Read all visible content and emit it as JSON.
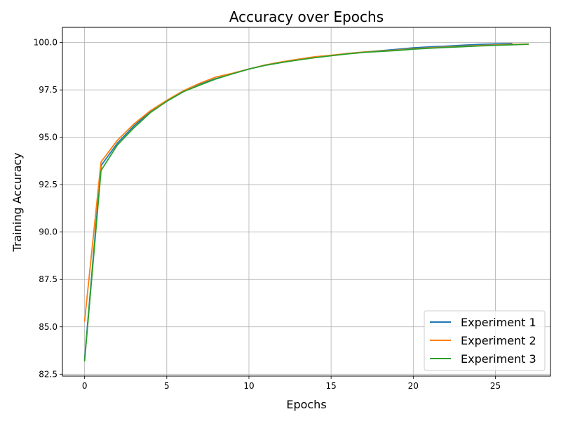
{
  "chart_data": {
    "type": "line",
    "title": "Accuracy over Epochs",
    "xlabel": "Epochs",
    "ylabel": "Training Accuracy",
    "xlim": [
      -1.35,
      28.35
    ],
    "ylim": [
      82.4,
      100.8
    ],
    "xticks": [
      0,
      5,
      10,
      15,
      20,
      25
    ],
    "xtick_labels": [
      "0",
      "5",
      "10",
      "15",
      "20",
      "25"
    ],
    "yticks": [
      82.5,
      85.0,
      87.5,
      90.0,
      92.5,
      95.0,
      97.5,
      100.0
    ],
    "ytick_labels": [
      "82.5",
      "85.0",
      "87.5",
      "90.0",
      "92.5",
      "95.0",
      "97.5",
      "100.0"
    ],
    "grid": true,
    "legend_position": "lower-right",
    "series": [
      {
        "name": "Experiment 1",
        "color": "#1f77b4",
        "x": [
          0,
          1,
          2,
          3,
          4,
          5,
          6,
          7,
          8,
          9,
          10,
          11,
          12,
          13,
          14,
          15,
          16,
          17,
          18,
          19,
          20,
          21,
          22,
          23,
          24,
          25,
          26
        ],
        "y": [
          83.3,
          93.5,
          94.7,
          95.6,
          96.35,
          96.9,
          97.4,
          97.8,
          98.1,
          98.35,
          98.6,
          98.8,
          98.95,
          99.1,
          99.22,
          99.32,
          99.42,
          99.5,
          99.57,
          99.64,
          99.72,
          99.77,
          99.81,
          99.86,
          99.9,
          99.93,
          99.95
        ]
      },
      {
        "name": "Experiment 2",
        "color": "#ff7f0e",
        "x": [
          0,
          1,
          2,
          3,
          4,
          5,
          6,
          7,
          8,
          9,
          10,
          11,
          12,
          13,
          14,
          15,
          16,
          17,
          18,
          19,
          20,
          21,
          22,
          23,
          24,
          25,
          26,
          27
        ],
        "y": [
          85.3,
          93.7,
          94.85,
          95.7,
          96.4,
          96.95,
          97.45,
          97.85,
          98.18,
          98.38,
          98.6,
          98.82,
          98.98,
          99.12,
          99.25,
          99.33,
          99.42,
          99.5,
          99.55,
          99.6,
          99.67,
          99.72,
          99.76,
          99.8,
          99.84,
          99.87,
          99.9,
          99.92
        ]
      },
      {
        "name": "Experiment 3",
        "color": "#2ca02c",
        "x": [
          0,
          1,
          2,
          3,
          4,
          5,
          6,
          7,
          8,
          9,
          10,
          11,
          12,
          13,
          14,
          15,
          16,
          17,
          18,
          19,
          20,
          21,
          22,
          23,
          24,
          25,
          26,
          27
        ],
        "y": [
          83.2,
          93.25,
          94.6,
          95.5,
          96.3,
          96.9,
          97.4,
          97.75,
          98.08,
          98.35,
          98.6,
          98.8,
          98.95,
          99.08,
          99.2,
          99.3,
          99.4,
          99.48,
          99.53,
          99.58,
          99.65,
          99.7,
          99.74,
          99.78,
          99.82,
          99.85,
          99.88,
          99.91
        ]
      }
    ]
  }
}
